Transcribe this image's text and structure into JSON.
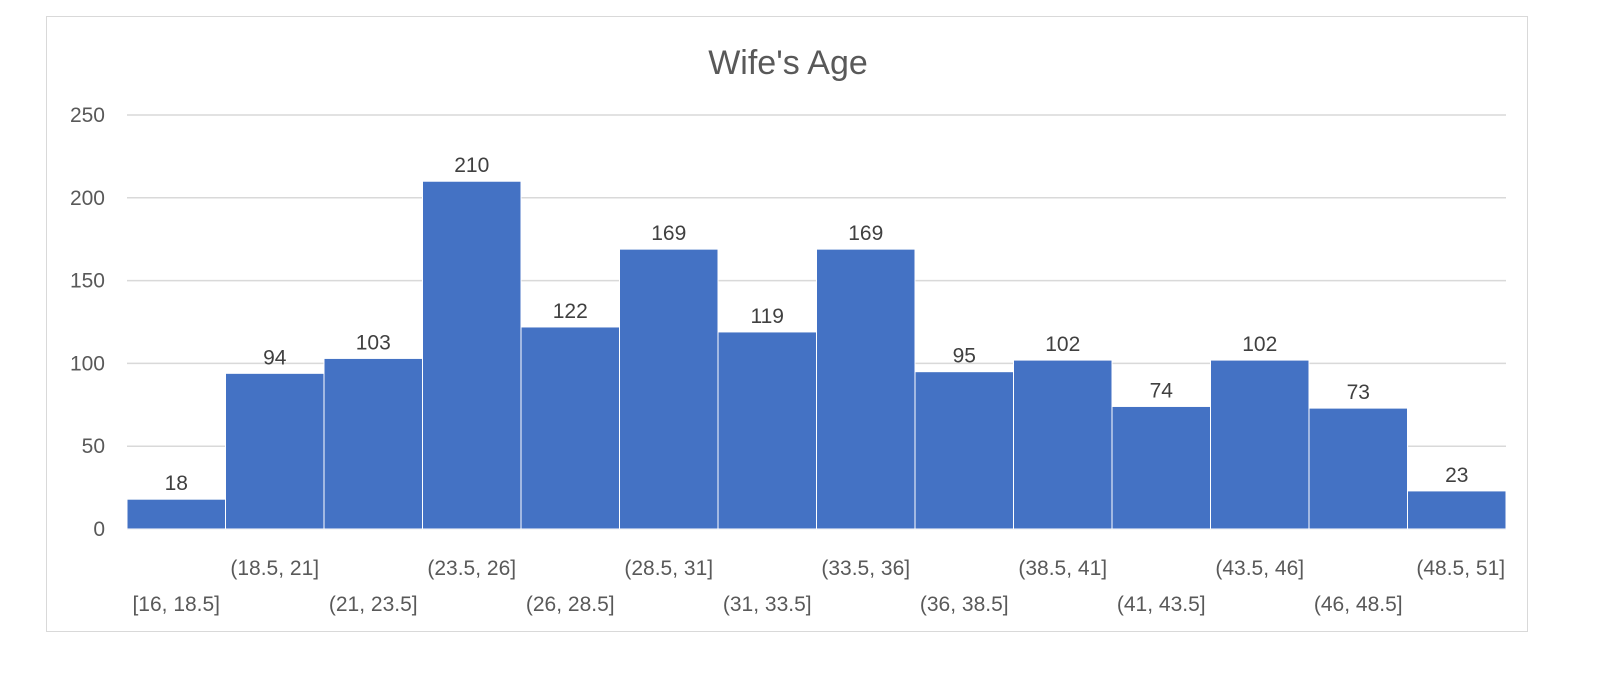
{
  "chart_data": {
    "type": "bar",
    "title": "Wife's Age",
    "xlabel": "",
    "ylabel": "",
    "categories": [
      "[16, 18.5]",
      "(18.5, 21]",
      "(21, 23.5]",
      "(23.5, 26]",
      "(26, 28.5]",
      "(28.5, 31]",
      "(31, 33.5]",
      "(33.5, 36]",
      "(36, 38.5]",
      "(38.5, 41]",
      "(41, 43.5]",
      "(43.5, 46]",
      "(46, 48.5]",
      "(48.5, 51]"
    ],
    "values": [
      18,
      94,
      103,
      210,
      122,
      169,
      119,
      169,
      95,
      102,
      74,
      102,
      73,
      23
    ],
    "ylim": [
      0,
      250
    ],
    "yticks": [
      0,
      50,
      100,
      150,
      200,
      250
    ],
    "grid": true,
    "legend": "none",
    "bar_color": "#4472c4",
    "gridline_color": "#d9d9d9"
  }
}
